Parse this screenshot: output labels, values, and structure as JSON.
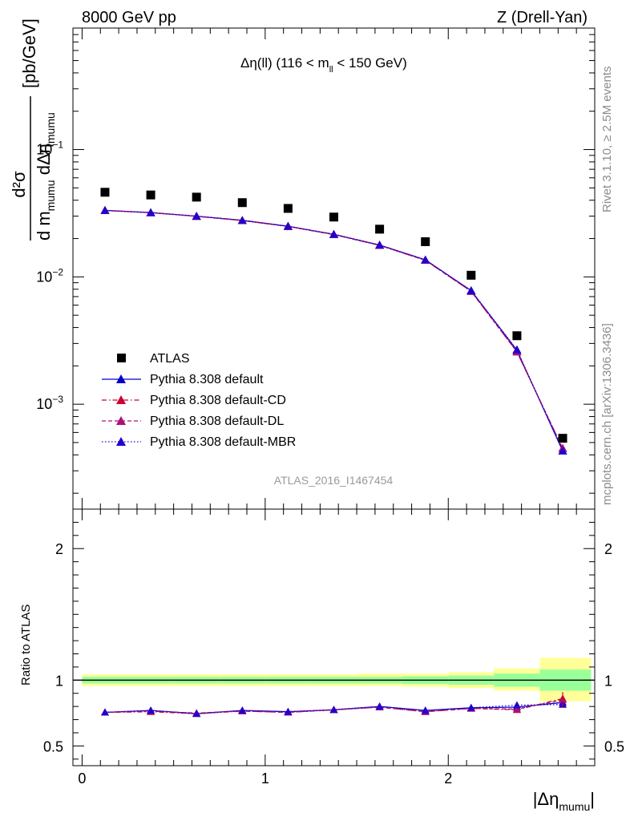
{
  "header": {
    "left": "8000 GeV pp",
    "right": "Z (Drell-Yan)"
  },
  "side_labels": {
    "rivet": "Rivet 3.1.10, ≥ 2.5M events",
    "mcplots": "mcplots.cern.ch [arXiv:1306.3436]"
  },
  "watermark": "ATLAS_2016_I1467454",
  "colors": {
    "atlas": "#000000",
    "default": "#0000cc",
    "cd": "#cc0033",
    "dl": "#aa1177",
    "mbr": "#2200cc",
    "band_outer": "#ffff99",
    "band_inner": "#99ff99"
  },
  "chart_data": [
    {
      "type": "scatter",
      "panel": "main",
      "title_parts": {
        "delta": "Δη(ll) (116 < m",
        "sub": "ll",
        "tail": " < 150 GeV)"
      },
      "ylabel_parts": {
        "num": "d²σ",
        "den": "d m",
        "den_sub1": "mumu",
        "den_mid": " dΔη",
        "den_sub2": "mumu",
        "unit": "[pb/GeV]"
      },
      "y_scale": "log",
      "ylim": [
        0.00015,
        0.9
      ],
      "xlim": [
        -0.05,
        2.8
      ],
      "y_ticks": [
        {
          "label": "10",
          "exp": "−1"
        },
        {
          "label": "10",
          "exp": "−2"
        },
        {
          "label": "10",
          "exp": "−3"
        }
      ],
      "x": [
        0.125,
        0.375,
        0.625,
        0.875,
        1.125,
        1.375,
        1.625,
        1.875,
        2.125,
        2.375,
        2.625
      ],
      "series": [
        {
          "name": "ATLAS",
          "marker": "square",
          "style": "none",
          "values": [
            0.0462,
            0.044,
            0.0423,
            0.0383,
            0.0345,
            0.0295,
            0.0237,
            0.0189,
            0.0103,
            0.00345,
            0.00054
          ]
        },
        {
          "name": "Pythia 8.308 default",
          "marker": "triangle",
          "style": "solid",
          "values": [
            0.0333,
            0.032,
            0.03,
            0.0278,
            0.025,
            0.0216,
            0.0178,
            0.0136,
            0.0078,
            0.00265,
            0.00043
          ]
        },
        {
          "name": "Pythia 8.308 default-CD",
          "marker": "triangle",
          "style": "dashdot",
          "values": [
            0.0332,
            0.0319,
            0.0299,
            0.0277,
            0.0249,
            0.0215,
            0.0177,
            0.0135,
            0.0077,
            0.00258,
            0.00045
          ]
        },
        {
          "name": "Pythia 8.308 default-DL",
          "marker": "triangle",
          "style": "dashed",
          "values": [
            0.0332,
            0.0319,
            0.0299,
            0.0277,
            0.0249,
            0.0215,
            0.0177,
            0.0135,
            0.0077,
            0.00258,
            0.00045
          ]
        },
        {
          "name": "Pythia 8.308 default-MBR",
          "marker": "triangle",
          "style": "dotted",
          "values": [
            0.0333,
            0.032,
            0.03,
            0.0278,
            0.025,
            0.0216,
            0.0178,
            0.0136,
            0.0078,
            0.00268,
            0.00043
          ]
        }
      ]
    },
    {
      "type": "line",
      "panel": "ratio",
      "ylabel": "Ratio to ATLAS",
      "xlabel_parts": {
        "main": "|Δη",
        "sub": "mumu",
        "end": "|"
      },
      "ylim": [
        0.35,
        2.3
      ],
      "xlim": [
        -0.05,
        2.8
      ],
      "x_ticks": [
        "0",
        "1",
        "2"
      ],
      "x_tick_values": [
        0,
        1,
        2
      ],
      "y_ticks": [
        "0.5",
        "1",
        "2"
      ],
      "y_tick_values": [
        0.5,
        1,
        2
      ],
      "x": [
        0.125,
        0.375,
        0.625,
        0.875,
        1.125,
        1.375,
        1.625,
        1.875,
        2.125,
        2.375,
        2.625
      ],
      "band_edges": [
        0,
        0.25,
        0.5,
        0.75,
        1.0,
        1.25,
        1.5,
        1.75,
        2.0,
        2.25,
        2.5,
        2.78
      ],
      "band_outer": [
        [
          0.955,
          1.045
        ],
        [
          0.955,
          1.045
        ],
        [
          0.955,
          1.045
        ],
        [
          0.955,
          1.045
        ],
        [
          0.955,
          1.045
        ],
        [
          0.955,
          1.045
        ],
        [
          0.955,
          1.05
        ],
        [
          0.95,
          1.05
        ],
        [
          0.94,
          1.06
        ],
        [
          0.92,
          1.09
        ],
        [
          0.84,
          1.17
        ]
      ],
      "band_inner": [
        [
          0.975,
          1.025
        ],
        [
          0.975,
          1.025
        ],
        [
          0.975,
          1.025
        ],
        [
          0.975,
          1.025
        ],
        [
          0.975,
          1.025
        ],
        [
          0.975,
          1.025
        ],
        [
          0.975,
          1.025
        ],
        [
          0.97,
          1.03
        ],
        [
          0.965,
          1.035
        ],
        [
          0.95,
          1.05
        ],
        [
          0.92,
          1.08
        ]
      ],
      "series": [
        {
          "name": "Pythia 8.308 default",
          "values": [
            0.755,
            0.77,
            0.745,
            0.77,
            0.76,
            0.775,
            0.8,
            0.77,
            0.79,
            0.795,
            0.83
          ]
        },
        {
          "name": "Pythia 8.308 default-CD",
          "values": [
            0.755,
            0.76,
            0.745,
            0.765,
            0.755,
            0.775,
            0.795,
            0.76,
            0.785,
            0.775,
            0.86
          ]
        },
        {
          "name": "Pythia 8.308 default-DL",
          "values": [
            0.755,
            0.765,
            0.75,
            0.765,
            0.755,
            0.775,
            0.795,
            0.76,
            0.785,
            0.78,
            0.85
          ]
        },
        {
          "name": "Pythia 8.308 default-MBR",
          "values": [
            0.755,
            0.77,
            0.745,
            0.77,
            0.76,
            0.775,
            0.8,
            0.77,
            0.79,
            0.81,
            0.815
          ]
        }
      ]
    }
  ]
}
